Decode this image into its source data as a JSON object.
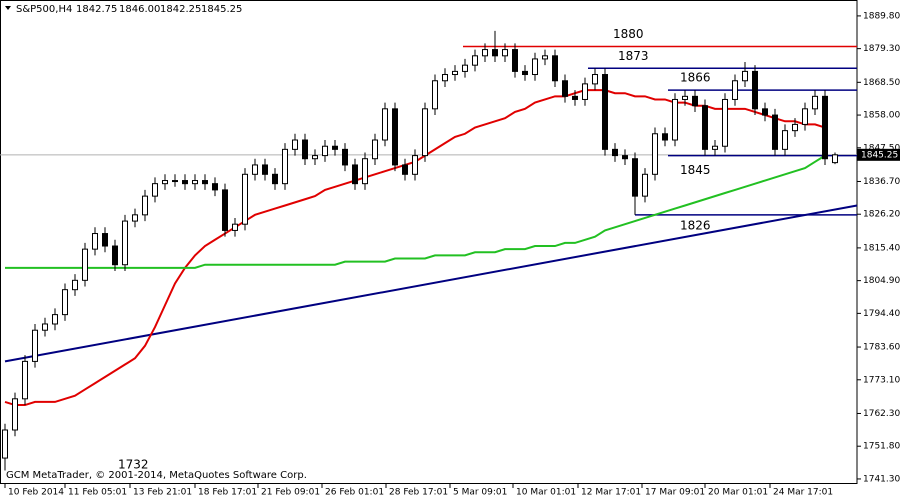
{
  "chart_data": {
    "type": "candlestick",
    "header": {
      "symbol": "S&P500,H4",
      "ohlc": [
        "1842.75",
        "1846.00",
        "1842.25",
        "1845.25"
      ]
    },
    "footer": "GCM MetaTrader, © 2001-2014, MetaQuotes Software Corp.",
    "annotations": [
      "1732"
    ],
    "candles": {
      "open": [
        1748,
        1757,
        1767,
        1779,
        1789,
        1791,
        1794,
        1802,
        1805,
        1815,
        1820,
        1816,
        1810,
        1824,
        1826,
        1832,
        1836,
        1837,
        1837,
        1836,
        1837,
        1836,
        1834,
        1821,
        1823,
        1839,
        1842,
        1839,
        1836,
        1847,
        1850,
        1844,
        1845,
        1848,
        1847,
        1842,
        1836,
        1844,
        1850,
        1860,
        1842,
        1839,
        1845,
        1860,
        1869,
        1871,
        1872,
        1874,
        1877,
        1879,
        1877,
        1879,
        1872,
        1871,
        1876,
        1877,
        1869,
        1864,
        1863,
        1868,
        1871,
        1847,
        1845,
        1844,
        1832,
        1839,
        1852,
        1850,
        1863,
        1864,
        1861,
        1847,
        1848,
        1863,
        1869,
        1872,
        1860,
        1858,
        1847,
        1853,
        1855,
        1860,
        1864,
        1842.75
      ],
      "high": [
        1759,
        1769,
        1781,
        1791,
        1793,
        1796,
        1804,
        1807,
        1817,
        1822,
        1822,
        1818,
        1826,
        1828,
        1834,
        1838,
        1839,
        1839,
        1839,
        1839,
        1839,
        1838,
        1836,
        1825,
        1841,
        1844,
        1844,
        1841,
        1849,
        1852,
        1852,
        1847,
        1850,
        1850,
        1849,
        1844,
        1846,
        1852,
        1862,
        1862,
        1844,
        1847,
        1862,
        1871,
        1873,
        1874,
        1876,
        1879,
        1881,
        1885,
        1881,
        1881,
        1874,
        1878,
        1879,
        1879,
        1871,
        1866,
        1870,
        1873,
        1873,
        1849,
        1847,
        1846,
        1841,
        1854,
        1854,
        1865,
        1866,
        1866,
        1863,
        1850,
        1865,
        1871,
        1875,
        1874,
        1862,
        1860,
        1855,
        1857,
        1862,
        1866,
        1866,
        1846
      ],
      "low": [
        1744,
        1755,
        1765,
        1777,
        1787,
        1789,
        1792,
        1800,
        1803,
        1813,
        1814,
        1808,
        1808,
        1822,
        1824,
        1830,
        1834,
        1835,
        1834,
        1834,
        1834,
        1832,
        1819,
        1819,
        1821,
        1837,
        1837,
        1834,
        1834,
        1845,
        1842,
        1842,
        1843,
        1845,
        1840,
        1834,
        1834,
        1842,
        1848,
        1840,
        1837,
        1837,
        1843,
        1858,
        1867,
        1869,
        1870,
        1872,
        1875,
        1875,
        1875,
        1870,
        1869,
        1869,
        1874,
        1867,
        1862,
        1861,
        1861,
        1866,
        1845,
        1843,
        1842,
        1826,
        1830,
        1837,
        1848,
        1848,
        1861,
        1859,
        1845,
        1845,
        1846,
        1861,
        1867,
        1858,
        1856,
        1845,
        1845,
        1851,
        1853,
        1858,
        1842,
        1842.25
      ],
      "close": [
        1757,
        1767,
        1779,
        1789,
        1791,
        1794,
        1802,
        1805,
        1815,
        1820,
        1816,
        1810,
        1824,
        1826,
        1832,
        1836,
        1837,
        1837,
        1836,
        1837,
        1836,
        1834,
        1821,
        1823,
        1839,
        1842,
        1839,
        1836,
        1847,
        1850,
        1844,
        1845,
        1848,
        1847,
        1842,
        1836,
        1844,
        1850,
        1860,
        1842,
        1839,
        1845,
        1860,
        1869,
        1871,
        1872,
        1874,
        1877,
        1879,
        1877,
        1879,
        1872,
        1871,
        1876,
        1877,
        1869,
        1864,
        1863,
        1868,
        1871,
        1847,
        1845,
        1844,
        1832,
        1839,
        1852,
        1850,
        1863,
        1864,
        1861,
        1847,
        1848,
        1863,
        1869,
        1872,
        1860,
        1858,
        1847,
        1853,
        1855,
        1860,
        1864,
        1844,
        1845.25
      ]
    },
    "moving_averages": [
      {
        "color": "#e00000",
        "values": [
          1766,
          1765,
          1765,
          1766,
          1766,
          1766,
          1767,
          1768,
          1770,
          1772,
          1774,
          1776,
          1778,
          1780,
          1784,
          1790,
          1797,
          1804,
          1809,
          1813,
          1816,
          1818,
          1820,
          1822,
          1824,
          1826,
          1827,
          1828,
          1829,
          1830,
          1831,
          1832,
          1834,
          1835,
          1836,
          1837,
          1838,
          1839,
          1840,
          1841,
          1842,
          1843,
          1845,
          1847,
          1849,
          1851,
          1852,
          1854,
          1855,
          1856,
          1857,
          1859,
          1860,
          1862,
          1863,
          1864,
          1864,
          1865,
          1866,
          1866,
          1866,
          1865,
          1865,
          1864,
          1864,
          1863,
          1863,
          1862,
          1862,
          1861,
          1861,
          1860,
          1860,
          1860,
          1860,
          1859,
          1858,
          1857,
          1856,
          1856,
          1855,
          1855,
          1854,
          null
        ]
      },
      {
        "color": "#22c022",
        "values": [
          1809,
          1809,
          1809,
          1809,
          1809,
          1809,
          1809,
          1809,
          1809,
          1809,
          1809,
          1809,
          1809,
          1809,
          1809,
          1809,
          1809,
          1809,
          1809,
          1809,
          1810,
          1810,
          1810,
          1810,
          1810,
          1810,
          1810,
          1810,
          1810,
          1810,
          1810,
          1810,
          1810,
          1810,
          1811,
          1811,
          1811,
          1811,
          1811,
          1812,
          1812,
          1812,
          1812,
          1813,
          1813,
          1813,
          1813,
          1814,
          1814,
          1814,
          1815,
          1815,
          1815,
          1816,
          1816,
          1816,
          1817,
          1817,
          1818,
          1819,
          1821,
          1822,
          1823,
          1824,
          1825,
          1826,
          1827,
          1828,
          1829,
          1830,
          1831,
          1832,
          1833,
          1834,
          1835,
          1836,
          1837,
          1838,
          1839,
          1840,
          1841,
          1843,
          1845,
          null
        ]
      }
    ],
    "levels": [
      {
        "value": 1880,
        "start": 45.8,
        "color": "#e00000"
      },
      {
        "value": 1873,
        "start": 58.3,
        "color": "#000080"
      },
      {
        "value": 1866,
        "start": 66.3,
        "color": "#000080"
      },
      {
        "value": 1845,
        "start": 66.3,
        "color": "#000080"
      },
      {
        "value": 1826,
        "start": 63,
        "color": "#000080"
      }
    ],
    "trendline": {
      "x": [
        0,
        85.2
      ],
      "y": [
        1779,
        1829
      ],
      "color": "#000080"
    },
    "current_price": 1845.25,
    "xlim": [
      0,
      85.2
    ],
    "ylim": [
      1740,
      1894.9
    ],
    "yticks": [
      {
        "value": 1889.8,
        "label": "1889.80"
      },
      {
        "value": 1879.3,
        "label": "1879.30"
      },
      {
        "value": 1868.5,
        "label": "1868.50"
      },
      {
        "value": 1858,
        "label": "1858.00"
      },
      {
        "value": 1847.5,
        "label": "1847.50"
      },
      {
        "value": 1836.7,
        "label": "1836.70"
      },
      {
        "value": 1826.2,
        "label": "1826.20"
      },
      {
        "value": 1815.4,
        "label": "1815.40"
      },
      {
        "value": 1804.9,
        "label": "1804.90"
      },
      {
        "value": 1794.4,
        "label": "1794.40"
      },
      {
        "value": 1783.6,
        "label": "1783.60"
      },
      {
        "value": 1773.1,
        "label": "1773.10"
      },
      {
        "value": 1762.3,
        "label": "1762.30"
      },
      {
        "value": 1751.8,
        "label": "1751.80"
      },
      {
        "value": 1741.3,
        "label": "1741.30"
      }
    ],
    "xticks": [
      {
        "value": 0,
        "label": "10 Feb 2014"
      },
      {
        "value": 6,
        "label": "11 Feb 05:01"
      },
      {
        "value": 12.5,
        "label": "13 Feb 21:01"
      },
      {
        "value": 19,
        "label": "18 Feb 17:01"
      },
      {
        "value": 25.3,
        "label": "21 Feb 09:01"
      },
      {
        "value": 31.7,
        "label": "26 Feb 01:01"
      },
      {
        "value": 38.1,
        "label": "28 Feb 17:01"
      },
      {
        "value": 44.5,
        "label": "5 Mar 09:01"
      },
      {
        "value": 50.8,
        "label": "10 Mar 01:01"
      },
      {
        "value": 57.3,
        "label": "12 Mar 17:01"
      },
      {
        "value": 63.7,
        "label": "17 Mar 09:01"
      },
      {
        "value": 70,
        "label": "20 Mar 01:01"
      },
      {
        "value": 76.5,
        "label": "24 Mar 17:01"
      }
    ]
  }
}
